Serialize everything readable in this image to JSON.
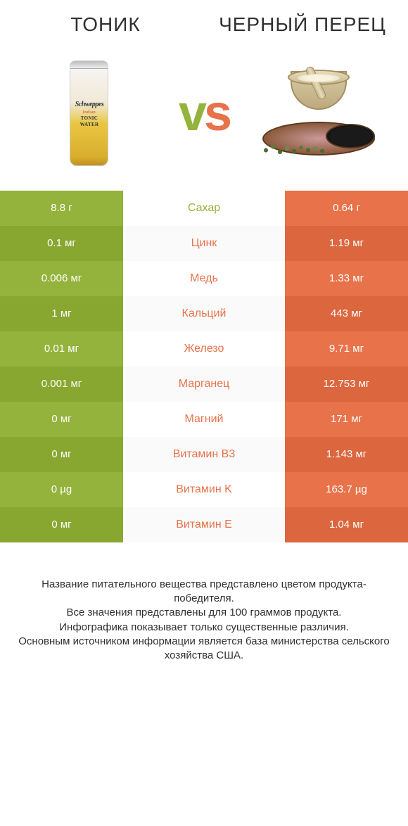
{
  "colors": {
    "green": "#94b33c",
    "orange": "#e8724a",
    "text": "#303030",
    "white": "#ffffff"
  },
  "header": {
    "left_title": "ТОНИК",
    "right_title": "ЧЕРНЫЙ ПЕРЕЦ"
  },
  "vs_label": "vs",
  "can_text": {
    "brand": "Schweppes",
    "sub": "Indian",
    "product": "TONIC WATER"
  },
  "table": {
    "type": "comparison-table",
    "rows": [
      {
        "left": "8.8 г",
        "nutrient": "Сахар",
        "right": "0.64 г",
        "winner": "left"
      },
      {
        "left": "0.1 мг",
        "nutrient": "Цинк",
        "right": "1.19 мг",
        "winner": "right"
      },
      {
        "left": "0.006 мг",
        "nutrient": "Медь",
        "right": "1.33 мг",
        "winner": "right"
      },
      {
        "left": "1 мг",
        "nutrient": "Кальций",
        "right": "443 мг",
        "winner": "right"
      },
      {
        "left": "0.01 мг",
        "nutrient": "Железо",
        "right": "9.71 мг",
        "winner": "right"
      },
      {
        "left": "0.001 мг",
        "nutrient": "Марганец",
        "right": "12.753 мг",
        "winner": "right"
      },
      {
        "left": "0 мг",
        "nutrient": "Магний",
        "right": "171 мг",
        "winner": "right"
      },
      {
        "left": "0 мг",
        "nutrient": "Витамин B3",
        "right": "1.143 мг",
        "winner": "right"
      },
      {
        "left": "0 µg",
        "nutrient": "Витамин K",
        "right": "163.7 µg",
        "winner": "right"
      },
      {
        "left": "0 мг",
        "nutrient": "Витамин E",
        "right": "1.04 мг",
        "winner": "right"
      }
    ]
  },
  "footer": {
    "line1": "Название питательного вещества представлено цветом продукта-победителя.",
    "line2": "Все значения представлены для 100 граммов продукта.",
    "line3": "Инфографика показывает только существенные различия.",
    "line4": "Основным источником информации является база министерства сельского хозяйства США."
  }
}
